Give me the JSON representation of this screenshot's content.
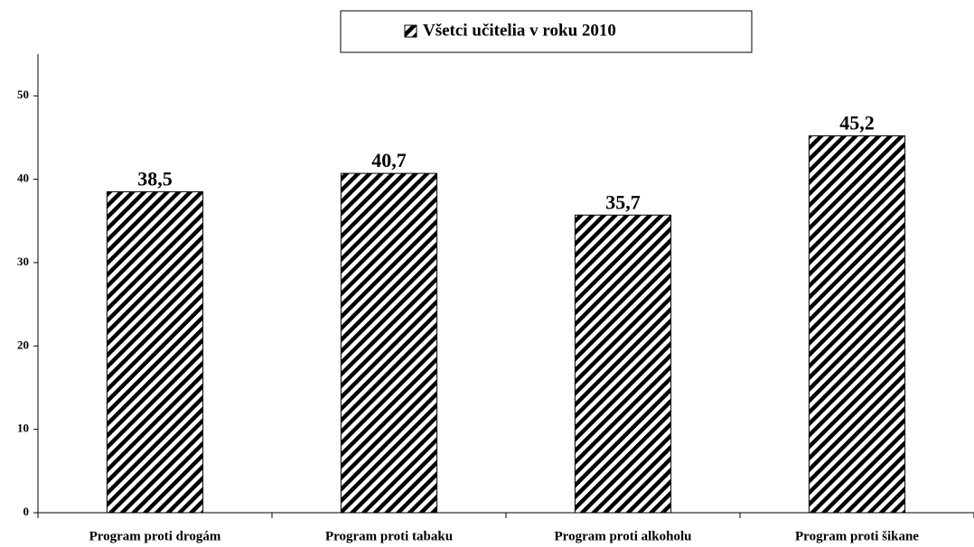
{
  "chart_data": {
    "type": "bar",
    "categories": [
      "Program proti drogám",
      "Program proti tabaku",
      "Program proti alkoholu",
      "Program proti šikane"
    ],
    "series": [
      {
        "name": "Všetci učitelia v roku 2010",
        "color": "#000000",
        "values": [
          38.5,
          40.7,
          35.7,
          45.2
        ],
        "value_labels": [
          "38,5",
          "40,7",
          "35,7",
          "45,2"
        ]
      }
    ],
    "ylim": [
      0,
      55
    ],
    "yticks": [
      0,
      10,
      20,
      30,
      40,
      50
    ],
    "grid": false,
    "legend": "top"
  }
}
